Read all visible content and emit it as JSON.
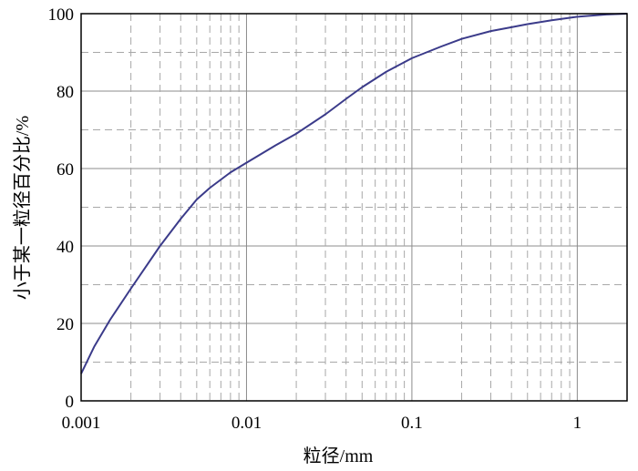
{
  "chart_data": {
    "type": "line",
    "xlabel": "粒径/mm",
    "ylabel": "小于某一粒径百分比/%",
    "xscale": "log",
    "xlim": [
      0.001,
      2
    ],
    "ylim": [
      0,
      100
    ],
    "x_ticks": [
      "0.001",
      "0.01",
      "0.1",
      "1"
    ],
    "y_ticks": [
      "0",
      "20",
      "40",
      "60",
      "80",
      "100"
    ],
    "grid": "major solid, minor dashed",
    "series": [
      {
        "color": "#3b3b8a",
        "x": [
          0.001,
          0.0012,
          0.0015,
          0.002,
          0.003,
          0.004,
          0.005,
          0.006,
          0.008,
          0.01,
          0.015,
          0.02,
          0.03,
          0.04,
          0.05,
          0.07,
          0.1,
          0.15,
          0.2,
          0.3,
          0.4,
          0.5,
          0.7,
          1.0,
          1.5,
          2.0
        ],
        "y": [
          7,
          14,
          21,
          29,
          40,
          47,
          52,
          55,
          59,
          61.5,
          66,
          69,
          74,
          78,
          81,
          85,
          88.5,
          91.5,
          93.5,
          95.5,
          96.5,
          97.3,
          98.3,
          99.2,
          99.8,
          100
        ]
      }
    ]
  }
}
